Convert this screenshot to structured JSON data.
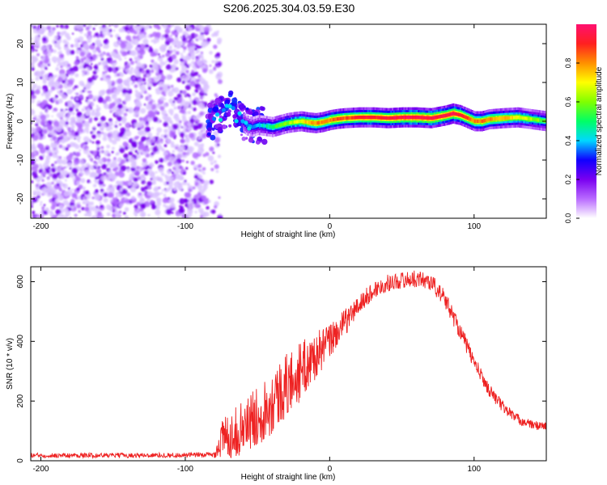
{
  "title": "S206.2025.304.03.59.E30",
  "chart_data": [
    {
      "type": "heatmap",
      "xlabel": "Height of straight line (km)",
      "ylabel": "Frequency (Hz)",
      "xlim": [
        -207,
        150
      ],
      "ylim": [
        -25,
        25
      ],
      "xticks": [
        -200,
        -100,
        0,
        100
      ],
      "yticks": [
        -20,
        -10,
        0,
        10,
        20
      ],
      "colorbar": {
        "label": "Normalized spectral amplitude",
        "range": [
          0,
          1
        ],
        "ticks": [
          0.0,
          0.2,
          0.4,
          0.6,
          0.8
        ],
        "colors": [
          "#ffffff",
          "#b96bff",
          "#7a00f0",
          "#1000ff",
          "#00d8ff",
          "#00ff66",
          "#80ff00",
          "#ffff00",
          "#ff9000",
          "#ff2020",
          "#ff1070"
        ]
      },
      "noise_region": {
        "x_from": -207,
        "x_to": -80,
        "level": 0.1
      },
      "ridge": {
        "x": [
          -82,
          -78,
          -74,
          -70,
          -66,
          -62,
          -58,
          -54,
          -50,
          -45,
          -40,
          -35,
          -30,
          -25,
          -20,
          -15,
          -10,
          -5,
          0,
          5,
          10,
          20,
          30,
          40,
          50,
          60,
          70,
          80,
          85,
          90,
          95,
          100,
          105,
          110,
          120,
          130,
          140,
          150
        ],
        "freq": [
          0,
          1,
          2,
          3.5,
          2,
          0.5,
          -1,
          -1.5,
          -1,
          -1.2,
          -1.5,
          -1,
          -0.5,
          -0.2,
          0,
          -0.3,
          -0.5,
          -0.2,
          0.3,
          0.6,
          0.8,
          1,
          1,
          0.8,
          1,
          1,
          0.8,
          1.5,
          2,
          1.6,
          0.8,
          0,
          0,
          0.5,
          0.8,
          1,
          0.5,
          0
        ],
        "amplitude": [
          0.2,
          0.25,
          0.3,
          0.3,
          0.3,
          0.3,
          0.32,
          0.35,
          0.4,
          0.45,
          0.5,
          0.55,
          0.6,
          0.65,
          0.7,
          0.75,
          0.8,
          0.8,
          0.82,
          0.85,
          0.85,
          0.9,
          0.9,
          0.92,
          0.95,
          0.97,
          0.95,
          0.92,
          0.95,
          0.9,
          0.85,
          0.8,
          0.82,
          0.8,
          0.75,
          0.7,
          0.62,
          0.55
        ]
      }
    },
    {
      "type": "line",
      "xlabel": "Height of straight line (km)",
      "ylabel": "SNR (10 * v/v)",
      "xlim": [
        -207,
        150
      ],
      "ylim": [
        0,
        650
      ],
      "xticks": [
        -200,
        -100,
        0,
        100
      ],
      "yticks": [
        0,
        200,
        400,
        600
      ],
      "color": "#ee2222",
      "series": [
        {
          "name": "SNR",
          "envelope_x": [
            -207,
            -150,
            -100,
            -80,
            -75,
            -60,
            -50,
            -40,
            -30,
            -20,
            -10,
            0,
            10,
            20,
            30,
            40,
            50,
            60,
            70,
            80,
            90,
            100,
            110,
            120,
            130,
            140,
            150
          ],
          "envelope_mean": [
            18,
            18,
            19,
            20,
            70,
            110,
            150,
            200,
            250,
            300,
            350,
            400,
            460,
            520,
            570,
            595,
            605,
            610,
            600,
            540,
            440,
            330,
            240,
            180,
            140,
            120,
            115
          ],
          "envelope_spread": [
            8,
            8,
            8,
            10,
            70,
            90,
            100,
            110,
            110,
            100,
            80,
            60,
            45,
            35,
            30,
            28,
            28,
            28,
            30,
            30,
            30,
            25,
            22,
            20,
            18,
            15,
            15
          ]
        }
      ]
    }
  ]
}
